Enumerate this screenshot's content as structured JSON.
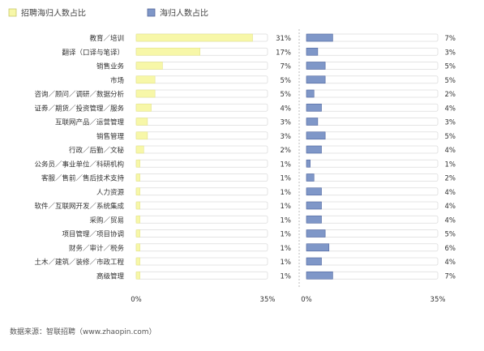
{
  "chart_data": {
    "type": "bar",
    "categories": [
      "教育／培训",
      "翻译（口译与笔译）",
      "销售业务",
      "市场",
      "咨询／顾问／调研／数据分析",
      "证券／期货／投资管理／服务",
      "互联网产品／运营管理",
      "销售管理",
      "行政／后勤／文秘",
      "公务员／事业单位／科研机构",
      "客服／售前／售后技术支持",
      "人力资源",
      "软件／互联网开发／系统集成",
      "采购／贸易",
      "项目管理／项目协调",
      "财务／审计／税务",
      "土木／建筑／装修／市政工程",
      "高级管理"
    ],
    "series": [
      {
        "name": "招聘海归人数占比",
        "color": "#f7f7a8",
        "values": [
          31,
          17,
          7,
          5,
          5,
          4,
          3,
          3,
          2,
          1,
          1,
          1,
          1,
          1,
          1,
          1,
          1,
          1
        ],
        "labels": [
          "31%",
          "17%",
          "7%",
          "5%",
          "5%",
          "4%",
          "3%",
          "3%",
          "2%",
          "1%",
          "1%",
          "1%",
          "1%",
          "1%",
          "1%",
          "1%",
          "1%",
          "1%"
        ]
      },
      {
        "name": "海归人数占比",
        "color": "#7f97c8",
        "values": [
          7,
          3,
          5,
          5,
          2,
          4,
          3,
          5,
          4,
          1,
          2,
          4,
          4,
          4,
          5,
          6,
          4,
          7
        ],
        "labels": [
          "7%",
          "3%",
          "5%",
          "5%",
          "2%",
          "4%",
          "3%",
          "5%",
          "4%",
          "1%",
          "2%",
          "4%",
          "4%",
          "4%",
          "5%",
          "6%",
          "4%",
          "7%"
        ]
      }
    ],
    "xlim": [
      0,
      35
    ],
    "tick_labels": [
      "0%",
      "35%"
    ],
    "legend_position": "top-left",
    "grid": false
  },
  "source_text": "数据来源：智联招聘（www.zhaopin.com）"
}
